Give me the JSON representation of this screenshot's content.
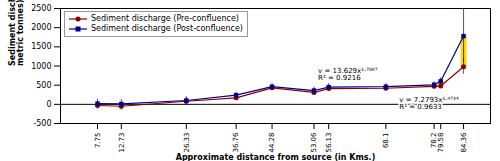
{
  "chart_data": {
    "type": "line",
    "xlabel": "Approximate distance from source (in Kms.)",
    "ylabel": "Sediment discharge (in\nmetric tonnes)",
    "x": [
      7.75,
      12.73,
      26.33,
      36.76,
      44.28,
      53.06,
      56.13,
      68.1,
      78.2,
      79.58,
      84.36
    ],
    "series": [
      {
        "name": "Sediment discharge (Pre-confluence)",
        "color": "#8B0000",
        "marker": "circle",
        "values": [
          -30,
          -50,
          80,
          170,
          430,
          310,
          410,
          420,
          470,
          480,
          980
        ],
        "errors": [
          100,
          100,
          90,
          70,
          70,
          80,
          80,
          70,
          70,
          70,
          200
        ]
      },
      {
        "name": "Sediment discharge (Post-confluence)",
        "color": "#00008B",
        "marker": "square",
        "values": [
          20,
          10,
          100,
          240,
          460,
          360,
          450,
          460,
          510,
          600,
          1780
        ],
        "errors": [
          110,
          110,
          100,
          80,
          80,
          90,
          90,
          80,
          80,
          90,
          720
        ]
      }
    ],
    "difference_bars": {
      "x": [
        44.28,
        56.13,
        68.1,
        78.2,
        79.58,
        84.36
      ],
      "bottom": [
        430,
        410,
        420,
        470,
        480,
        980
      ],
      "values": [
        30,
        40,
        40,
        40,
        120,
        800
      ],
      "color": "#FFD700"
    },
    "annotations": [
      {
        "x": 53.5,
        "y": 950,
        "text": "y = 13.629x¹·⁷⁸⁸⁷\nR² = 0.9216"
      },
      {
        "x": 70.5,
        "y": 200,
        "text": "y = 7.2793x¹·⁹⁷³⁴\nR² = 0.9633"
      }
    ],
    "hline": 0,
    "xlim": [
      0,
      90
    ],
    "xticks": [
      7.75,
      12.73,
      26.33,
      36.76,
      44.28,
      53.06,
      56.13,
      68.1,
      78.2,
      79.58,
      84.36
    ],
    "ylim": [
      -500,
      2500
    ],
    "yticks": [
      -500,
      0,
      500,
      1000,
      1500,
      2000,
      2500
    ],
    "legend": "upper left",
    "grid": false
  }
}
